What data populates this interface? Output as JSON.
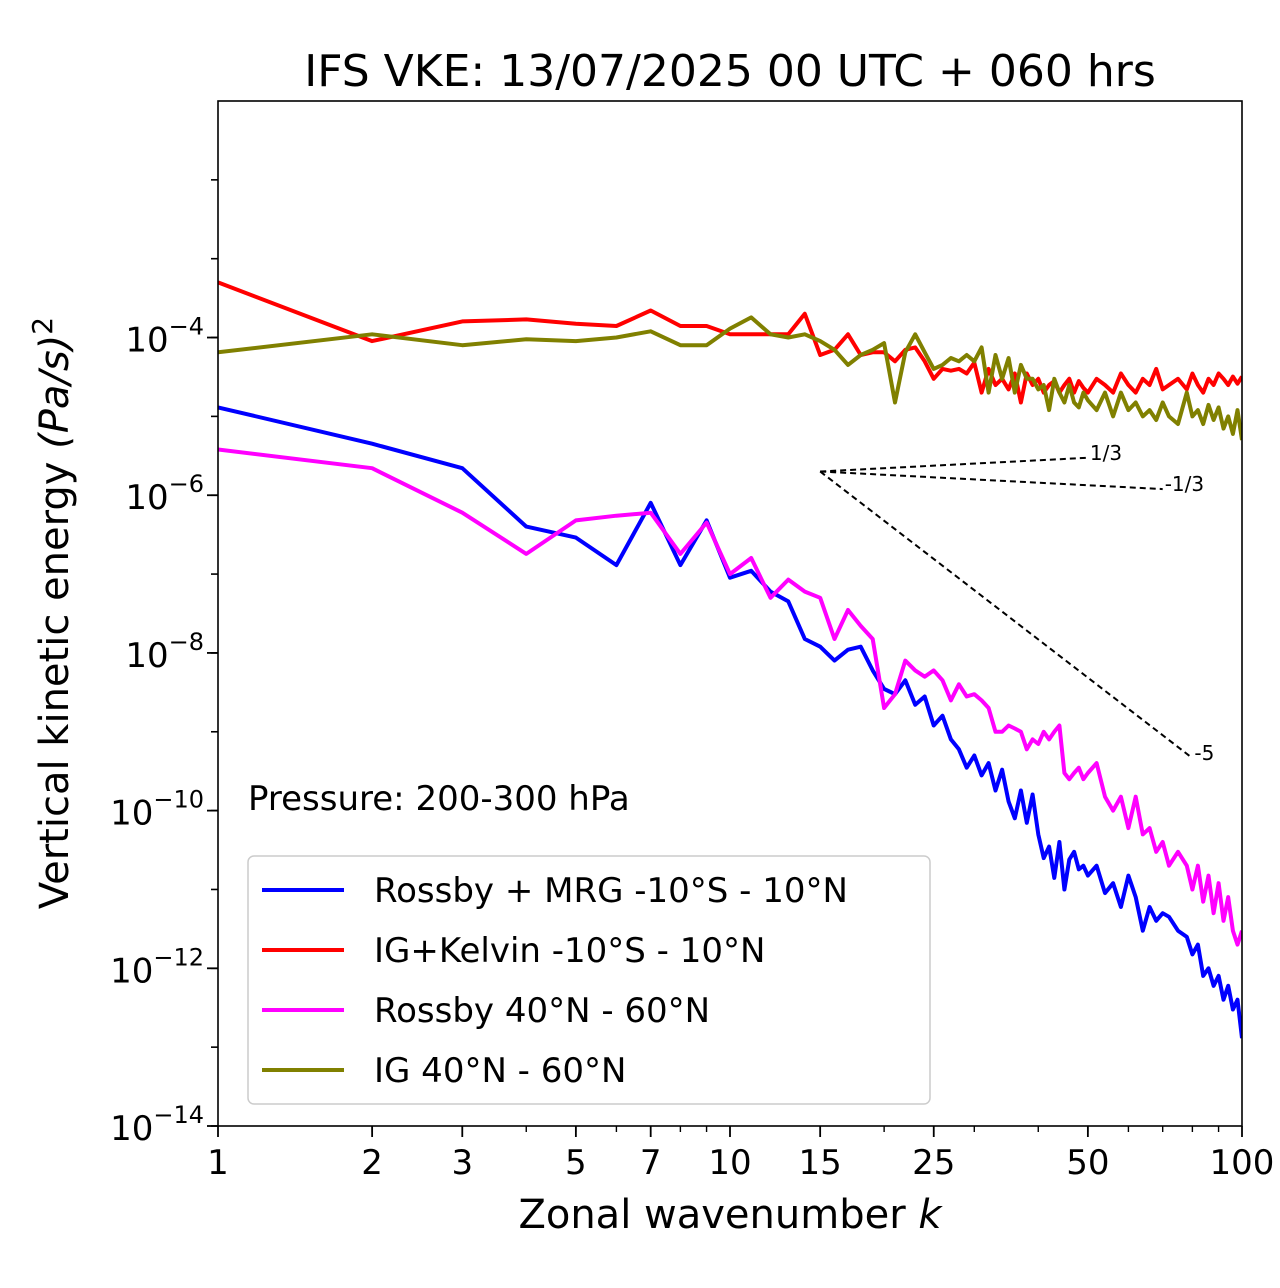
{
  "chart_data": {
    "type": "line",
    "title": "IFS VKE: 13/07/2025 00 UTC + 060 hrs",
    "xlabel_main": "Zonal wavenumber ",
    "xlabel_var": "k",
    "ylabel_main": "Vertical kinetic energy ",
    "ylabel_var": "(Pa/s)",
    "ylabel_exp": "2",
    "xscale": "log",
    "yscale": "log",
    "xlim": [
      1,
      100
    ],
    "ylim": [
      1e-14,
      0.1
    ],
    "x_ticks": [
      1,
      2,
      3,
      5,
      7,
      10,
      15,
      25,
      50,
      100
    ],
    "x_tick_labels": [
      "1",
      "2",
      "3",
      "5",
      "7",
      "10",
      "15",
      "25",
      "50",
      "100"
    ],
    "y_tick_base": "10",
    "y_ticks": [
      {
        "exp": -4,
        "label": "−4"
      },
      {
        "exp": -6,
        "label": "−6"
      },
      {
        "exp": -8,
        "label": "−8"
      },
      {
        "exp": -10,
        "label": "−10"
      },
      {
        "exp": -12,
        "label": "−12"
      },
      {
        "exp": -14,
        "label": "−14"
      }
    ],
    "annotation": "Pressure: 200-300 hPa",
    "legend_position": "lower-left",
    "reference_slopes": [
      {
        "label": "1/3",
        "x0": 15,
        "y0": 2e-06,
        "x1": 50,
        "slope": 0.3333
      },
      {
        "label": "-1/3",
        "x0": 15,
        "y0": 2e-06,
        "x1": 70,
        "slope": -0.3333
      },
      {
        "label": "-5",
        "x0": 15,
        "y0": 2e-06,
        "x1": 80,
        "slope": -5
      }
    ],
    "series": [
      {
        "name": "Rossby + MRG -10°S - 10°N",
        "color": "#0000ff",
        "points": [
          [
            1,
            1.3e-05
          ],
          [
            2,
            4.5e-06
          ],
          [
            3,
            2.2e-06
          ],
          [
            4,
            4e-07
          ],
          [
            5,
            2.9e-07
          ],
          [
            6,
            1.3e-07
          ],
          [
            7,
            8e-07
          ],
          [
            8,
            1.3e-07
          ],
          [
            9,
            4.8e-07
          ],
          [
            10,
            9e-08
          ],
          [
            11,
            1.1e-07
          ],
          [
            12,
            6e-08
          ],
          [
            13,
            4.5e-08
          ],
          [
            14,
            1.5e-08
          ],
          [
            15,
            1.2e-08
          ],
          [
            16,
            8e-09
          ],
          [
            17,
            1.1e-08
          ],
          [
            18,
            1.2e-08
          ],
          [
            19,
            6e-09
          ],
          [
            20,
            3.5e-09
          ],
          [
            21,
            3e-09
          ],
          [
            22,
            4.5e-09
          ],
          [
            23,
            2.2e-09
          ],
          [
            24,
            2.8e-09
          ],
          [
            25,
            1.2e-09
          ],
          [
            26,
            1.6e-09
          ],
          [
            27,
            8e-10
          ],
          [
            28,
            6e-10
          ],
          [
            29,
            3.5e-10
          ],
          [
            30,
            5e-10
          ],
          [
            31,
            2.8e-10
          ],
          [
            32,
            4e-10
          ],
          [
            33,
            1.8e-10
          ],
          [
            34,
            3.3e-10
          ],
          [
            35,
            1.3e-10
          ],
          [
            36,
            8e-11
          ],
          [
            37,
            1.8e-10
          ],
          [
            38,
            7e-11
          ],
          [
            39,
            1.6e-10
          ],
          [
            40,
            5e-11
          ],
          [
            41,
            2.5e-11
          ],
          [
            42,
            3.5e-11
          ],
          [
            43,
            1.4e-11
          ],
          [
            44,
            4e-11
          ],
          [
            45,
            1e-11
          ],
          [
            46,
            2.4e-11
          ],
          [
            47,
            3e-11
          ],
          [
            48,
            1.8e-11
          ],
          [
            49,
            2e-11
          ],
          [
            50,
            1.5e-11
          ],
          [
            52,
            2e-11
          ],
          [
            54,
            9e-12
          ],
          [
            56,
            1.2e-11
          ],
          [
            58,
            6e-12
          ],
          [
            60,
            1.5e-11
          ],
          [
            62,
            8e-12
          ],
          [
            64,
            3e-12
          ],
          [
            66,
            6e-12
          ],
          [
            68,
            4e-12
          ],
          [
            70,
            5e-12
          ],
          [
            72,
            4.5e-12
          ],
          [
            75,
            3e-12
          ],
          [
            78,
            2.5e-12
          ],
          [
            80,
            1.5e-12
          ],
          [
            82,
            2e-12
          ],
          [
            84,
            8e-13
          ],
          [
            86,
            1e-12
          ],
          [
            88,
            6e-13
          ],
          [
            90,
            8e-13
          ],
          [
            92,
            4e-13
          ],
          [
            94,
            6e-13
          ],
          [
            96,
            3e-13
          ],
          [
            98,
            4e-13
          ],
          [
            100,
            1.3e-13
          ]
        ]
      },
      {
        "name": "IG+Kelvin -10°S - 10°N",
        "color": "#ff0000",
        "points": [
          [
            1,
            0.0005
          ],
          [
            2,
            9e-05
          ],
          [
            3,
            0.00016
          ],
          [
            4,
            0.00017
          ],
          [
            5,
            0.00015
          ],
          [
            6,
            0.00014
          ],
          [
            7,
            0.00022
          ],
          [
            8,
            0.00014
          ],
          [
            9,
            0.00014
          ],
          [
            10,
            0.00011
          ],
          [
            11,
            0.00011
          ],
          [
            12,
            0.00011
          ],
          [
            13,
            0.00011
          ],
          [
            14,
            0.0002
          ],
          [
            15,
            6e-05
          ],
          [
            16,
            7e-05
          ],
          [
            17,
            0.00011
          ],
          [
            18,
            6e-05
          ],
          [
            19,
            6.5e-05
          ],
          [
            20,
            6.5e-05
          ],
          [
            21,
            5e-05
          ],
          [
            22,
            7e-05
          ],
          [
            23,
            7.5e-05
          ],
          [
            24,
            5e-05
          ],
          [
            25,
            3e-05
          ],
          [
            26,
            4e-05
          ],
          [
            27,
            3.8e-05
          ],
          [
            28,
            4e-05
          ],
          [
            29,
            3.5e-05
          ],
          [
            30,
            4.8e-05
          ],
          [
            31,
            2e-05
          ],
          [
            32,
            4e-05
          ],
          [
            33,
            2.5e-05
          ],
          [
            34,
            3e-05
          ],
          [
            35,
            2.2e-05
          ],
          [
            36,
            3.5e-05
          ],
          [
            37,
            1.5e-05
          ],
          [
            38,
            3.5e-05
          ],
          [
            39,
            2.5e-05
          ],
          [
            40,
            3e-05
          ],
          [
            41,
            2e-05
          ],
          [
            42,
            2.5e-05
          ],
          [
            43,
            2.8e-05
          ],
          [
            44,
            2e-05
          ],
          [
            45,
            2.5e-05
          ],
          [
            46,
            3e-05
          ],
          [
            47,
            2e-05
          ],
          [
            48,
            2.8e-05
          ],
          [
            49,
            2.3e-05
          ],
          [
            50,
            2e-05
          ],
          [
            52,
            3e-05
          ],
          [
            54,
            2.5e-05
          ],
          [
            56,
            2e-05
          ],
          [
            58,
            3.5e-05
          ],
          [
            60,
            2.5e-05
          ],
          [
            62,
            2e-05
          ],
          [
            64,
            3e-05
          ],
          [
            66,
            2.5e-05
          ],
          [
            68,
            4e-05
          ],
          [
            70,
            2.2e-05
          ],
          [
            72,
            2.5e-05
          ],
          [
            75,
            3e-05
          ],
          [
            78,
            2.2e-05
          ],
          [
            80,
            3.5e-05
          ],
          [
            82,
            2.5e-05
          ],
          [
            84,
            2e-05
          ],
          [
            86,
            3e-05
          ],
          [
            88,
            2.5e-05
          ],
          [
            90,
            3.5e-05
          ],
          [
            92,
            3e-05
          ],
          [
            94,
            2.5e-05
          ],
          [
            96,
            3.2e-05
          ],
          [
            98,
            2.6e-05
          ],
          [
            100,
            3.2e-05
          ]
        ]
      },
      {
        "name": "Rossby 40°N - 60°N",
        "color": "#ff00ff",
        "points": [
          [
            1,
            3.8e-06
          ],
          [
            2,
            2.2e-06
          ],
          [
            3,
            6e-07
          ],
          [
            4,
            1.8e-07
          ],
          [
            5,
            4.8e-07
          ],
          [
            6,
            5.5e-07
          ],
          [
            7,
            6e-07
          ],
          [
            8,
            1.8e-07
          ],
          [
            9,
            4.5e-07
          ],
          [
            10,
            1e-07
          ],
          [
            11,
            1.6e-07
          ],
          [
            12,
            5e-08
          ],
          [
            13,
            8.5e-08
          ],
          [
            14,
            6e-08
          ],
          [
            15,
            5e-08
          ],
          [
            16,
            1.5e-08
          ],
          [
            17,
            3.5e-08
          ],
          [
            18,
            2.2e-08
          ],
          [
            19,
            1.5e-08
          ],
          [
            20,
            2e-09
          ],
          [
            21,
            3e-09
          ],
          [
            22,
            8e-09
          ],
          [
            23,
            6e-09
          ],
          [
            24,
            5e-09
          ],
          [
            25,
            6e-09
          ],
          [
            26,
            4.5e-09
          ],
          [
            27,
            2.5e-09
          ],
          [
            28,
            4e-09
          ],
          [
            29,
            2.8e-09
          ],
          [
            30,
            3e-09
          ],
          [
            31,
            2.5e-09
          ],
          [
            32,
            2e-09
          ],
          [
            33,
            1e-09
          ],
          [
            34,
            1e-09
          ],
          [
            35,
            1.2e-09
          ],
          [
            36,
            1.1e-09
          ],
          [
            37,
            1e-09
          ],
          [
            38,
            6e-10
          ],
          [
            39,
            8e-10
          ],
          [
            40,
            7e-10
          ],
          [
            41,
            1e-09
          ],
          [
            42,
            8e-10
          ],
          [
            43,
            1e-09
          ],
          [
            44,
            1.2e-09
          ],
          [
            45,
            3e-10
          ],
          [
            46,
            2.5e-10
          ],
          [
            47,
            3e-10
          ],
          [
            48,
            3.5e-10
          ],
          [
            49,
            2.5e-10
          ],
          [
            50,
            3e-10
          ],
          [
            52,
            4e-10
          ],
          [
            54,
            1.5e-10
          ],
          [
            56,
            1e-10
          ],
          [
            58,
            1.5e-10
          ],
          [
            60,
            6e-11
          ],
          [
            62,
            1.5e-10
          ],
          [
            64,
            5e-11
          ],
          [
            66,
            6e-11
          ],
          [
            68,
            3e-11
          ],
          [
            70,
            4e-11
          ],
          [
            72,
            2e-11
          ],
          [
            75,
            3e-11
          ],
          [
            78,
            2e-11
          ],
          [
            80,
            1e-11
          ],
          [
            82,
            2e-11
          ],
          [
            84,
            7e-12
          ],
          [
            86,
            1.5e-11
          ],
          [
            88,
            5e-12
          ],
          [
            90,
            1.2e-11
          ],
          [
            92,
            4e-12
          ],
          [
            94,
            8e-12
          ],
          [
            96,
            3e-12
          ],
          [
            98,
            2e-12
          ],
          [
            100,
            3e-12
          ]
        ]
      },
      {
        "name": "IG 40°N - 60°N",
        "color": "#808000",
        "points": [
          [
            1,
            6.5e-05
          ],
          [
            2,
            0.00011
          ],
          [
            3,
            8e-05
          ],
          [
            4,
            9.5e-05
          ],
          [
            5,
            9e-05
          ],
          [
            6,
            0.0001
          ],
          [
            7,
            0.00012
          ],
          [
            8,
            8e-05
          ],
          [
            9,
            8e-05
          ],
          [
            10,
            0.00013
          ],
          [
            11,
            0.00018
          ],
          [
            12,
            0.00011
          ],
          [
            13,
            0.0001
          ],
          [
            14,
            0.00011
          ],
          [
            15,
            9e-05
          ],
          [
            16,
            7e-05
          ],
          [
            17,
            4.5e-05
          ],
          [
            18,
            6e-05
          ],
          [
            19,
            7e-05
          ],
          [
            20,
            8.5e-05
          ],
          [
            21,
            1.5e-05
          ],
          [
            22,
            6.5e-05
          ],
          [
            23,
            0.00011
          ],
          [
            24,
            6.5e-05
          ],
          [
            25,
            4e-05
          ],
          [
            26,
            4.5e-05
          ],
          [
            27,
            5.5e-05
          ],
          [
            28,
            5e-05
          ],
          [
            29,
            6e-05
          ],
          [
            30,
            5e-05
          ],
          [
            31,
            7.5e-05
          ],
          [
            32,
            2e-05
          ],
          [
            33,
            6e-05
          ],
          [
            34,
            3e-05
          ],
          [
            35,
            5.5e-05
          ],
          [
            36,
            2e-05
          ],
          [
            37,
            4.5e-05
          ],
          [
            38,
            3e-05
          ],
          [
            39,
            3e-05
          ],
          [
            40,
            2.2e-05
          ],
          [
            41,
            2.5e-05
          ],
          [
            42,
            1.2e-05
          ],
          [
            43,
            3e-05
          ],
          [
            44,
            2e-05
          ],
          [
            45,
            1.5e-05
          ],
          [
            46,
            2.5e-05
          ],
          [
            47,
            1.5e-05
          ],
          [
            48,
            1.3e-05
          ],
          [
            49,
            2e-05
          ],
          [
            50,
            1.6e-05
          ],
          [
            52,
            1.2e-05
          ],
          [
            54,
            2e-05
          ],
          [
            56,
            1e-05
          ],
          [
            58,
            2e-05
          ],
          [
            60,
            1.2e-05
          ],
          [
            62,
            1.5e-05
          ],
          [
            64,
            1e-05
          ],
          [
            66,
            1.2e-05
          ],
          [
            68,
            9e-06
          ],
          [
            70,
            1.5e-05
          ],
          [
            72,
            1e-05
          ],
          [
            75,
            8e-06
          ],
          [
            78,
            2e-05
          ],
          [
            80,
            1e-05
          ],
          [
            82,
            1.2e-05
          ],
          [
            84,
            8e-06
          ],
          [
            86,
            1.4e-05
          ],
          [
            88,
            9e-06
          ],
          [
            90,
            1.3e-05
          ],
          [
            92,
            7e-06
          ],
          [
            94,
            1e-05
          ],
          [
            96,
            6e-06
          ],
          [
            98,
            1.2e-05
          ],
          [
            100,
            5e-06
          ]
        ]
      }
    ]
  }
}
